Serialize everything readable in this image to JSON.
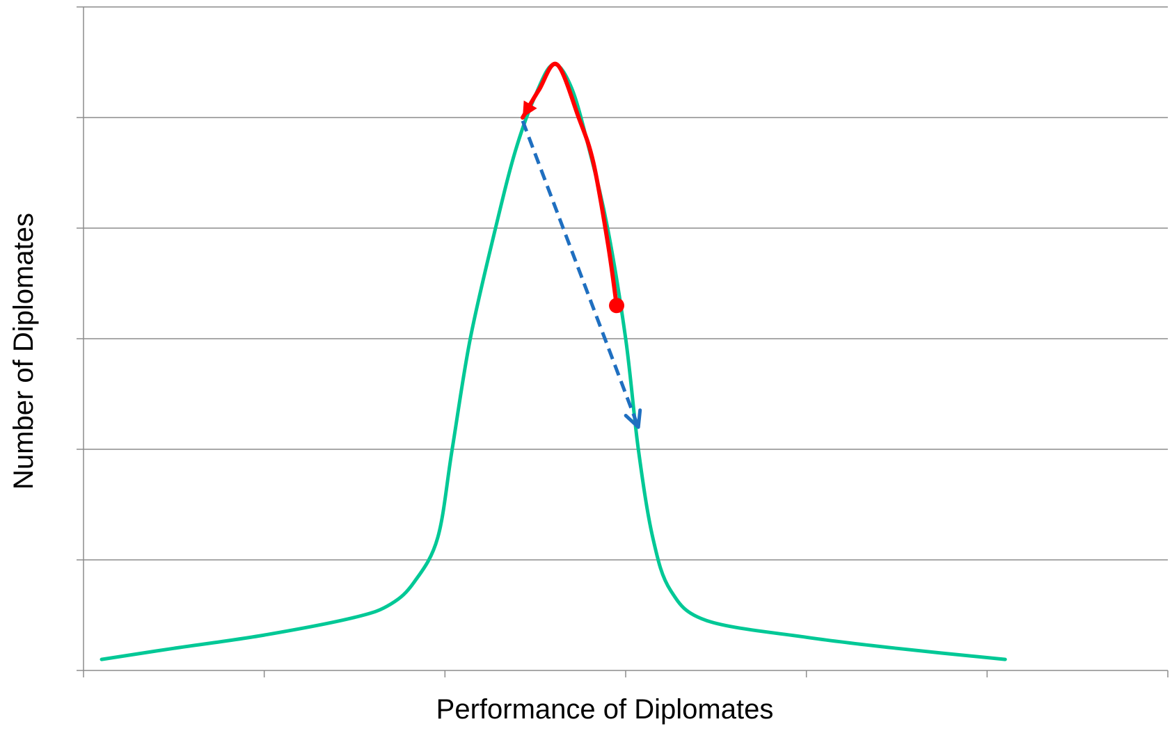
{
  "chart_data": {
    "type": "line",
    "title": "",
    "xlabel": "Performance of Diplomates",
    "ylabel": "Number of Diplomates",
    "xlim": [
      0,
      6
    ],
    "ylim": [
      0,
      6
    ],
    "x_ticks": [
      0,
      1,
      2,
      3,
      4,
      5,
      6
    ],
    "y_gridlines": [
      1,
      2,
      3,
      4,
      5,
      6
    ],
    "grid": true,
    "legend": "none",
    "series": [
      {
        "color": "#00c896",
        "points": [
          [
            0.1,
            0.1
          ],
          [
            0.5,
            0.2
          ],
          [
            1.0,
            0.32
          ],
          [
            1.5,
            0.48
          ],
          [
            1.7,
            0.6
          ],
          [
            1.83,
            0.8
          ],
          [
            1.96,
            1.2
          ],
          [
            2.04,
            2.0
          ],
          [
            2.14,
            3.0
          ],
          [
            2.28,
            4.0
          ],
          [
            2.39,
            4.7
          ],
          [
            2.5,
            5.2
          ],
          [
            2.6,
            5.48
          ],
          [
            2.7,
            5.27
          ],
          [
            2.8,
            4.7
          ],
          [
            2.9,
            4.0
          ],
          [
            3.0,
            3.0
          ],
          [
            3.07,
            2.0
          ],
          [
            3.15,
            1.2
          ],
          [
            3.25,
            0.72
          ],
          [
            3.45,
            0.45
          ],
          [
            4.0,
            0.3
          ],
          [
            4.5,
            0.2
          ],
          [
            5.1,
            0.1
          ]
        ]
      }
    ],
    "annotations": [
      {
        "kind": "solid-arrow",
        "color": "#ff0000",
        "from": [
          2.95,
          3.3
        ],
        "to": [
          2.43,
          5.0
        ],
        "path": [
          [
            2.95,
            3.3
          ],
          [
            2.9,
            3.88
          ],
          [
            2.82,
            4.6
          ],
          [
            2.74,
            5.0
          ],
          [
            2.62,
            5.48
          ],
          [
            2.52,
            5.25
          ],
          [
            2.43,
            5.0
          ]
        ]
      },
      {
        "kind": "dashed-arrow",
        "color": "#1f6fc0",
        "from": [
          2.43,
          4.97
        ],
        "to": [
          3.07,
          2.2
        ]
      }
    ]
  },
  "labels": {
    "x_axis_title": "Performance of Diplomates",
    "y_axis_title": "Number of Diplomates"
  }
}
